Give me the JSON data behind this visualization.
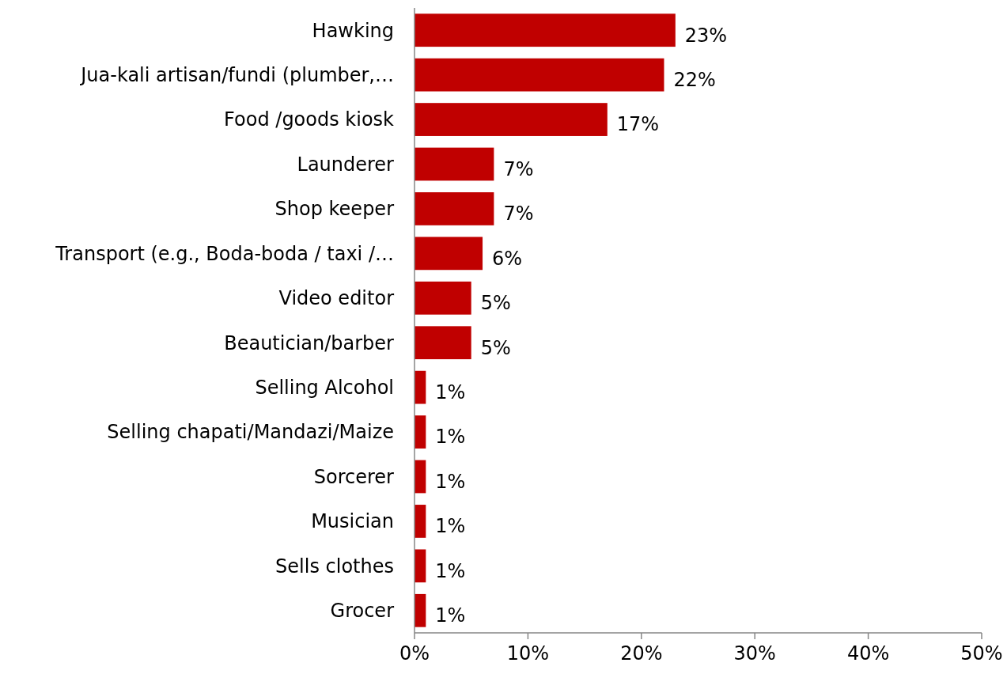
{
  "chart_data": {
    "type": "bar",
    "orientation": "horizontal",
    "categories": [
      "Hawking",
      "Jua-kali artisan/fundi (plumber,…",
      "Food /goods kiosk",
      "Launderer",
      "Shop keeper",
      "Transport (e.g., Boda-boda / taxi /…",
      "Video editor",
      "Beautician/barber",
      "Selling Alcohol",
      "Selling chapati/Mandazi/Maize",
      "Sorcerer",
      "Musician",
      "Sells clothes",
      "Grocer"
    ],
    "values": [
      23,
      22,
      17,
      7,
      7,
      6,
      5,
      5,
      1,
      1,
      1,
      1,
      1,
      1
    ],
    "value_labels": [
      "23%",
      "22%",
      "17%",
      "7%",
      "7%",
      "6%",
      "5%",
      "5%",
      "1%",
      "1%",
      "1%",
      "1%",
      "1%",
      "1%"
    ],
    "color": "#c00000",
    "xlim": [
      0,
      50
    ],
    "xticks": [
      {
        "value": 0,
        "label": "0%"
      },
      {
        "value": 10,
        "label": "10%"
      },
      {
        "value": 20,
        "label": "20%"
      },
      {
        "value": 30,
        "label": "30%"
      },
      {
        "value": 40,
        "label": "40%"
      },
      {
        "value": 50,
        "label": "50%"
      }
    ],
    "grid": false
  }
}
